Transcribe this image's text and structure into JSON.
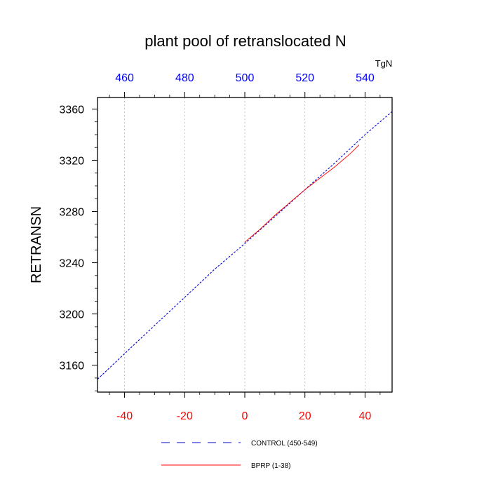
{
  "chart_data": {
    "type": "line",
    "title": "plant pool of retranslocated N",
    "ylabel": "RETRANSN",
    "top_axis_units": "TgN",
    "xlim": [
      -49,
      49
    ],
    "ylim": [
      3139,
      3369
    ],
    "x_ticks_bottom": [
      -40,
      -20,
      0,
      20,
      40
    ],
    "x_ticks_top_labels": [
      "460",
      "480",
      "500",
      "520",
      "540"
    ],
    "y_ticks": [
      3160,
      3200,
      3240,
      3280,
      3320,
      3360
    ],
    "bottom_axis_color": "#ff0000",
    "top_axis_color": "#0000ff",
    "grid_x": true,
    "legend_position": "bottom",
    "series": [
      {
        "name": "CONTROL (450-549)",
        "color": "#0000cc",
        "style": "dashed",
        "x": [
          -49,
          -40,
          -30,
          -20,
          -15,
          -10,
          0,
          10,
          20,
          30,
          40,
          49
        ],
        "y": [
          3149,
          3169,
          3191,
          3213,
          3224,
          3235,
          3255,
          3276,
          3297,
          3318,
          3340,
          3358
        ]
      },
      {
        "name": "BPRP (1-38)",
        "color": "#ff0000",
        "style": "solid",
        "x": [
          0,
          5,
          10,
          15,
          20,
          25,
          30,
          35,
          38
        ],
        "y": [
          3256,
          3266,
          3277,
          3287,
          3297,
          3306,
          3315,
          3325,
          3332
        ]
      }
    ]
  }
}
